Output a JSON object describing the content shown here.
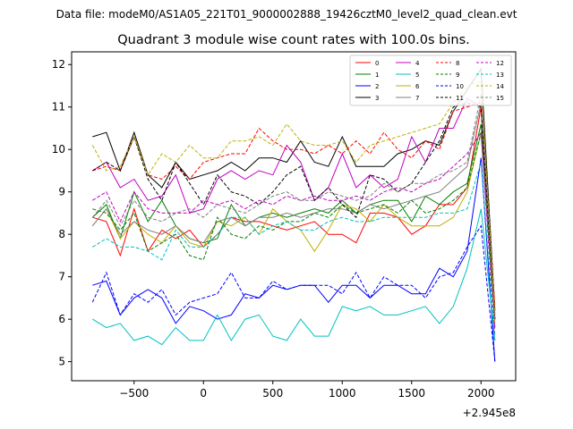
{
  "header": {
    "data_file": "Data file: modeM0/AS1A05_221T01_9000002888_19426cztM0_level2_quad_clean.evt"
  },
  "chart_data": {
    "type": "line",
    "title": "Quadrant 3 module wise count rates with 100.0s bins.",
    "xlabel": "",
    "ylabel": "",
    "x_offset_label": "+2.945e8",
    "xlim": [
      -950,
      2250
    ],
    "ylim": [
      4.55,
      12.3
    ],
    "x_ticks": [
      -500,
      0,
      500,
      1000,
      1500,
      2000
    ],
    "x_tick_labels": [
      "−500",
      "0",
      "500",
      "1000",
      "1500",
      "2000"
    ],
    "y_ticks": [
      5,
      6,
      7,
      8,
      9,
      10,
      11,
      12
    ],
    "y_tick_labels": [
      "5",
      "6",
      "7",
      "8",
      "9",
      "10",
      "11",
      "12"
    ],
    "grid": false,
    "legend_placement": "top-right",
    "x": [
      -800,
      -700,
      -600,
      -500,
      -400,
      -300,
      -200,
      -100,
      0,
      100,
      200,
      300,
      400,
      500,
      600,
      700,
      800,
      900,
      1000,
      1100,
      1200,
      1300,
      1400,
      1500,
      1600,
      1700,
      1800,
      1900,
      2000,
      2100
    ],
    "series": [
      {
        "name": "0",
        "color": "#ff0000",
        "dash": "solid",
        "values": [
          8.4,
          8.3,
          7.5,
          8.6,
          7.6,
          8.1,
          7.9,
          8.1,
          7.7,
          8.0,
          8.4,
          8.3,
          8.3,
          8.2,
          8.1,
          8.2,
          8.3,
          8.0,
          8.0,
          7.8,
          8.5,
          8.5,
          8.4,
          8.0,
          8.2,
          8.7,
          8.7,
          9.1,
          11.0,
          6.0
        ]
      },
      {
        "name": "1",
        "color": "#008000",
        "dash": "solid",
        "values": [
          8.4,
          8.7,
          7.9,
          9.0,
          8.3,
          8.8,
          8.2,
          7.9,
          7.8,
          7.9,
          8.7,
          8.2,
          8.4,
          8.5,
          8.4,
          8.5,
          8.6,
          8.5,
          8.8,
          8.5,
          8.7,
          8.8,
          8.8,
          8.3,
          8.9,
          8.7,
          9.0,
          9.2,
          10.6,
          6.1
        ]
      },
      {
        "name": "2",
        "color": "#0000ff",
        "dash": "solid",
        "values": [
          6.8,
          6.9,
          6.1,
          6.5,
          6.7,
          6.5,
          5.9,
          6.3,
          6.2,
          6.0,
          6.1,
          6.6,
          6.5,
          6.8,
          6.7,
          6.8,
          6.8,
          6.4,
          6.8,
          6.8,
          6.5,
          6.8,
          6.8,
          6.6,
          6.6,
          7.2,
          7.0,
          7.6,
          9.8,
          5.0
        ]
      },
      {
        "name": "3",
        "color": "#000000",
        "dash": "solid",
        "values": [
          10.3,
          10.4,
          9.5,
          10.4,
          9.4,
          9.1,
          9.7,
          9.3,
          9.4,
          9.5,
          9.7,
          9.5,
          9.8,
          9.8,
          9.7,
          10.2,
          9.7,
          9.6,
          10.3,
          9.6,
          9.6,
          9.6,
          9.9,
          10.0,
          10.2,
          10.1,
          10.9,
          11.4,
          11.9,
          6.2
        ]
      },
      {
        "name": "4",
        "color": "#c000c0",
        "dash": "solid",
        "values": [
          9.5,
          9.7,
          9.1,
          9.3,
          8.8,
          8.9,
          9.4,
          8.5,
          8.6,
          9.3,
          9.5,
          9.3,
          9.5,
          9.4,
          10.1,
          9.7,
          8.8,
          9.1,
          9.9,
          9.1,
          9.4,
          9.1,
          9.3,
          10.3,
          9.7,
          10.5,
          10.5,
          11.2,
          11.0,
          5.8
        ]
      },
      {
        "name": "5",
        "color": "#00c0c0",
        "dash": "solid",
        "values": [
          6.0,
          5.8,
          5.9,
          5.5,
          5.6,
          5.4,
          5.8,
          5.5,
          5.5,
          6.1,
          5.5,
          6.0,
          6.1,
          5.6,
          5.5,
          6.0,
          5.6,
          5.6,
          6.3,
          6.2,
          6.3,
          6.1,
          6.1,
          6.2,
          6.3,
          5.9,
          6.3,
          7.2,
          8.6,
          5.5
        ]
      },
      {
        "name": "6",
        "color": "#c0b000",
        "dash": "solid",
        "values": [
          8.2,
          8.6,
          7.9,
          8.3,
          8.0,
          7.8,
          8.2,
          7.8,
          7.7,
          8.3,
          8.2,
          8.4,
          8.0,
          8.6,
          8.3,
          8.1,
          7.6,
          8.1,
          8.7,
          8.6,
          8.3,
          8.7,
          8.4,
          8.2,
          8.2,
          8.2,
          8.4,
          9.0,
          10.4,
          5.9
        ]
      },
      {
        "name": "7",
        "color": "#808080",
        "dash": "solid",
        "values": [
          8.2,
          8.6,
          8.0,
          8.3,
          8.1,
          8.0,
          8.2,
          7.9,
          7.8,
          8.3,
          8.4,
          8.2,
          8.4,
          8.4,
          8.5,
          8.4,
          8.5,
          8.6,
          8.6,
          8.5,
          8.7,
          8.6,
          8.7,
          8.8,
          8.9,
          9.0,
          9.3,
          9.6,
          11.1,
          6.0
        ]
      },
      {
        "name": "8",
        "color": "#ff0000",
        "dash": "dashed",
        "values": [
          9.5,
          9.6,
          9.5,
          10.3,
          9.4,
          9.3,
          9.6,
          9.3,
          9.7,
          9.8,
          9.9,
          9.9,
          10.5,
          10.2,
          10.0,
          10.0,
          9.9,
          10.1,
          9.9,
          10.2,
          9.9,
          10.4,
          10.0,
          9.8,
          10.2,
          10.0,
          10.9,
          11.0,
          11.1,
          6.3
        ]
      },
      {
        "name": "9",
        "color": "#008000",
        "dash": "dashed",
        "values": [
          8.6,
          8.5,
          8.1,
          8.5,
          7.6,
          7.8,
          8.0,
          7.5,
          7.4,
          8.4,
          8.0,
          7.9,
          8.2,
          8.1,
          8.3,
          8.3,
          8.5,
          8.4,
          8.7,
          8.5,
          8.6,
          8.7,
          8.5,
          8.8,
          8.5,
          8.6,
          8.8,
          9.1,
          10.4,
          6.0
        ]
      },
      {
        "name": "10",
        "color": "#0000ff",
        "dash": "dashed",
        "values": [
          6.4,
          7.1,
          6.1,
          6.6,
          6.4,
          6.7,
          6.1,
          6.4,
          6.5,
          6.6,
          7.1,
          6.5,
          6.5,
          6.9,
          6.7,
          6.8,
          6.8,
          6.8,
          6.6,
          7.1,
          6.5,
          7.0,
          6.8,
          6.8,
          6.5,
          7.0,
          7.1,
          7.7,
          8.2,
          5.0
        ]
      },
      {
        "name": "11",
        "color": "#000000",
        "dash": "dashed",
        "values": [
          9.5,
          9.7,
          9.5,
          10.3,
          9.3,
          8.8,
          9.7,
          9.2,
          8.7,
          9.4,
          9.0,
          8.9,
          8.7,
          9.0,
          9.4,
          9.6,
          8.8,
          9.1,
          8.7,
          8.4,
          9.4,
          9.3,
          9.0,
          9.2,
          9.7,
          10.2,
          11.0,
          11.1,
          11.0,
          6.0
        ]
      },
      {
        "name": "12",
        "color": "#c000c0",
        "dash": "dashed",
        "values": [
          8.8,
          9.0,
          8.3,
          9.0,
          8.6,
          8.5,
          8.5,
          8.5,
          8.8,
          8.7,
          8.8,
          8.6,
          8.8,
          8.7,
          8.9,
          8.8,
          8.9,
          8.8,
          8.8,
          8.9,
          8.8,
          9.0,
          9.1,
          9.0,
          9.2,
          9.3,
          9.6,
          9.9,
          10.4,
          5.6
        ]
      },
      {
        "name": "13",
        "color": "#00c0c0",
        "dash": "dashed",
        "values": [
          7.7,
          7.9,
          7.7,
          7.7,
          7.6,
          7.4,
          8.1,
          7.7,
          7.7,
          8.0,
          8.4,
          8.4,
          8.0,
          8.2,
          8.3,
          8.1,
          8.1,
          8.3,
          8.4,
          8.3,
          8.3,
          8.4,
          8.4,
          8.4,
          8.4,
          8.5,
          8.5,
          8.6,
          9.7,
          5.5
        ]
      },
      {
        "name": "14",
        "color": "#c0b000",
        "dash": "dashed",
        "values": [
          10.1,
          9.5,
          9.6,
          10.3,
          9.4,
          9.9,
          9.7,
          10.1,
          9.8,
          9.8,
          10.2,
          10.2,
          10.3,
          10.1,
          10.6,
          10.2,
          10.1,
          10.1,
          10.2,
          9.7,
          10.1,
          10.2,
          10.3,
          10.4,
          10.5,
          10.6,
          11.1,
          11.5,
          11.6,
          6.1
        ]
      },
      {
        "name": "15",
        "color": "#808080",
        "dash": "dashed",
        "values": [
          8.4,
          8.8,
          8.2,
          8.8,
          8.4,
          8.3,
          8.5,
          8.6,
          8.4,
          8.7,
          8.6,
          8.5,
          8.7,
          8.9,
          9.0,
          8.8,
          8.8,
          9.0,
          8.9,
          8.8,
          8.9,
          9.2,
          9.0,
          9.2,
          9.2,
          9.4,
          9.5,
          9.7,
          11.3,
          6.0
        ]
      }
    ]
  }
}
